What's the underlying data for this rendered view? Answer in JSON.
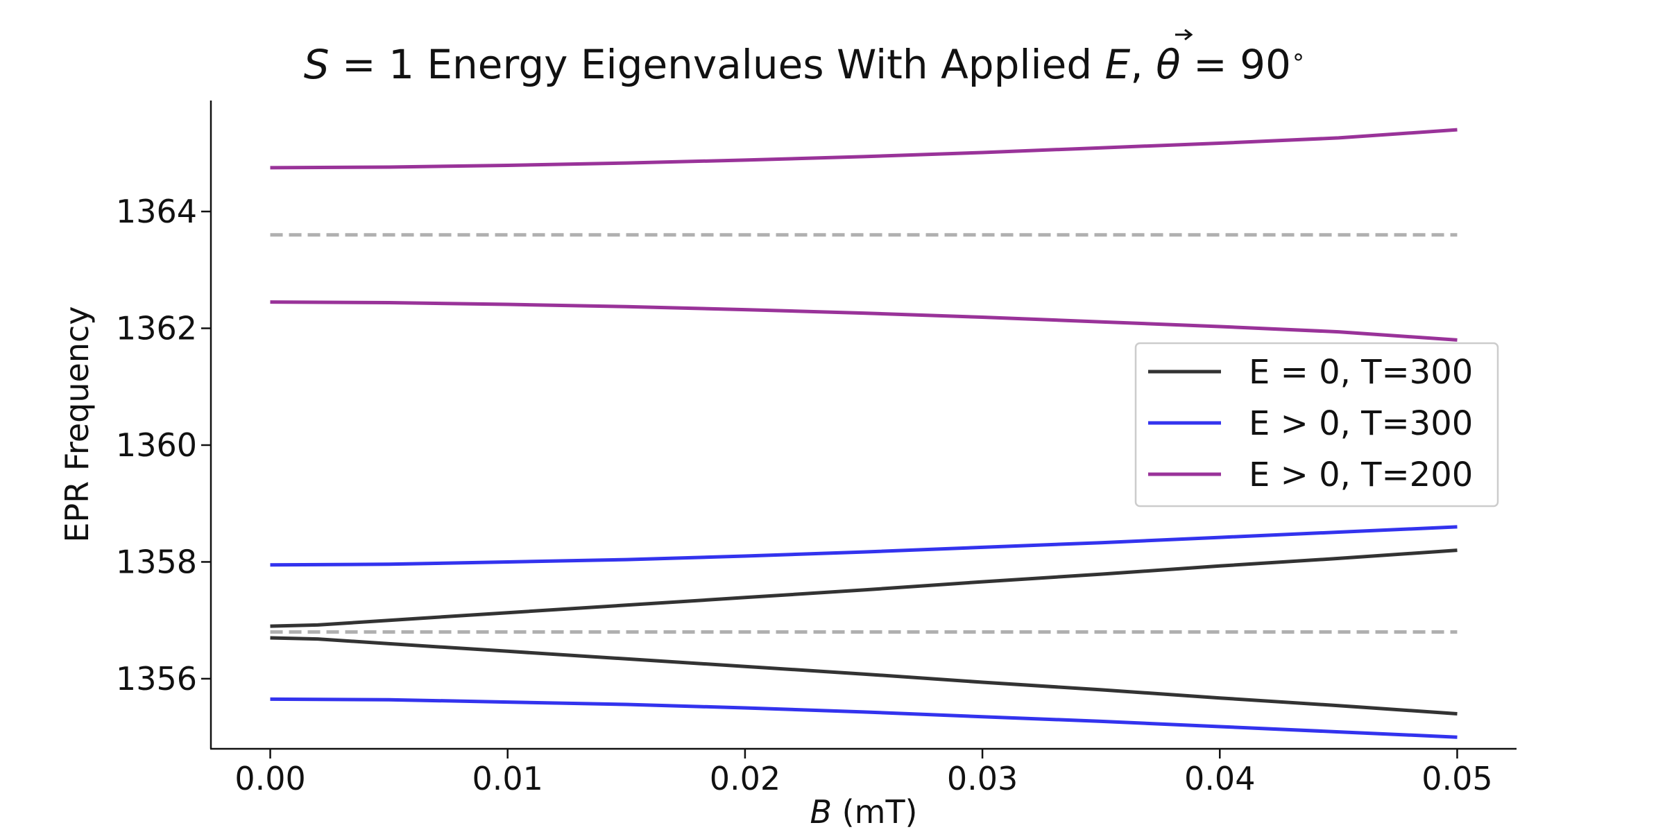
{
  "chart_data": {
    "type": "line",
    "title": {
      "prefix_var": "S",
      "prefix_rest": " = 1 Energy Eigenvalues With Applied ",
      "vector": "E",
      "mid": ", ",
      "angle_var": "θ",
      "angle_rest": " = 90",
      "degree": "∘"
    },
    "xlabel": {
      "var": "B",
      "unit": " (mT)"
    },
    "ylabel": "EPR Frequency",
    "xlim": [
      -0.0025,
      0.0525
    ],
    "ylim": [
      1354.8,
      1365.9
    ],
    "xticks": [
      "0.00",
      "0.01",
      "0.02",
      "0.03",
      "0.04",
      "0.05"
    ],
    "xtick_values": [
      0.0,
      0.01,
      0.02,
      0.03,
      0.04,
      0.05
    ],
    "yticks": [
      "1356",
      "1358",
      "1360",
      "1362",
      "1364"
    ],
    "ytick_values": [
      1356,
      1358,
      1360,
      1362,
      1364
    ],
    "grid": false,
    "legend_position": "center-right",
    "legend": [
      {
        "label": "E = 0, T=300",
        "color": "#333333"
      },
      {
        "label": "E > 0, T=300",
        "color": "#3333ee"
      },
      {
        "label": "E > 0, T=200",
        "color": "#993399"
      }
    ],
    "reference_lines": [
      {
        "y": 1363.6,
        "color": "#b0b0b0",
        "style": "dashed"
      },
      {
        "y": 1356.8,
        "color": "#b0b0b0",
        "style": "dashed"
      }
    ],
    "series": [
      {
        "legend": "E = 0, T=300",
        "color": "#333333",
        "branch": "upper",
        "x": [
          0.0,
          0.002,
          0.005,
          0.01,
          0.015,
          0.02,
          0.025,
          0.03,
          0.035,
          0.04,
          0.045,
          0.05
        ],
        "values": [
          1356.9,
          1356.92,
          1357.0,
          1357.13,
          1357.26,
          1357.39,
          1357.52,
          1357.66,
          1357.79,
          1357.93,
          1358.06,
          1358.2
        ]
      },
      {
        "legend": "E = 0, T=300",
        "color": "#333333",
        "branch": "lower",
        "x": [
          0.0,
          0.002,
          0.005,
          0.01,
          0.015,
          0.02,
          0.025,
          0.03,
          0.035,
          0.04,
          0.045,
          0.05
        ],
        "values": [
          1356.7,
          1356.68,
          1356.6,
          1356.47,
          1356.34,
          1356.21,
          1356.08,
          1355.94,
          1355.81,
          1355.67,
          1355.54,
          1355.4
        ]
      },
      {
        "legend": "E > 0, T=300",
        "color": "#3333ee",
        "branch": "upper",
        "x": [
          0.0,
          0.005,
          0.01,
          0.015,
          0.02,
          0.025,
          0.03,
          0.035,
          0.04,
          0.045,
          0.05
        ],
        "values": [
          1357.95,
          1357.96,
          1358.0,
          1358.04,
          1358.1,
          1358.17,
          1358.25,
          1358.33,
          1358.42,
          1358.51,
          1358.6
        ]
      },
      {
        "legend": "E > 0, T=300",
        "color": "#3333ee",
        "branch": "lower",
        "x": [
          0.0,
          0.005,
          0.01,
          0.015,
          0.02,
          0.025,
          0.03,
          0.035,
          0.04,
          0.045,
          0.05
        ],
        "values": [
          1355.65,
          1355.64,
          1355.6,
          1355.56,
          1355.5,
          1355.43,
          1355.35,
          1355.27,
          1355.18,
          1355.09,
          1355.0
        ]
      },
      {
        "legend": "E > 0, T=200",
        "color": "#993399",
        "branch": "upper",
        "x": [
          0.0,
          0.005,
          0.01,
          0.015,
          0.02,
          0.025,
          0.03,
          0.035,
          0.04,
          0.045,
          0.05
        ],
        "values": [
          1364.75,
          1364.76,
          1364.79,
          1364.83,
          1364.88,
          1364.94,
          1365.01,
          1365.09,
          1365.17,
          1365.26,
          1365.4
        ]
      },
      {
        "legend": "E > 0, T=200",
        "color": "#993399",
        "branch": "lower",
        "x": [
          0.0,
          0.005,
          0.01,
          0.015,
          0.02,
          0.025,
          0.03,
          0.035,
          0.04,
          0.045,
          0.05
        ],
        "values": [
          1362.45,
          1362.44,
          1362.41,
          1362.37,
          1362.32,
          1362.26,
          1362.19,
          1362.11,
          1362.03,
          1361.94,
          1361.8
        ]
      }
    ]
  }
}
